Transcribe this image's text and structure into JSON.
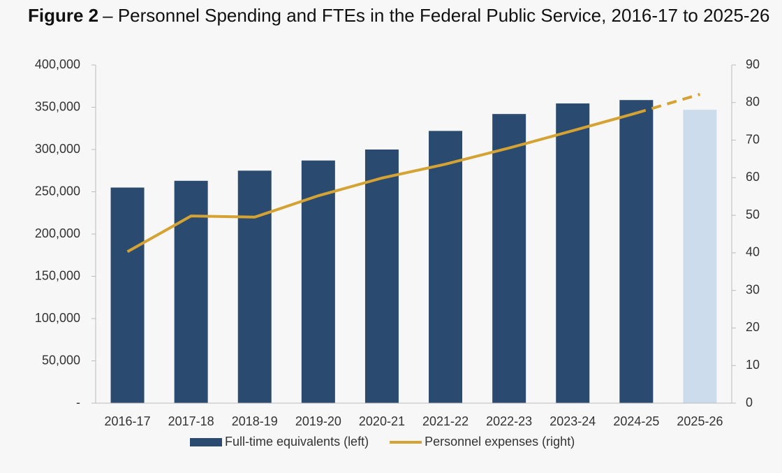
{
  "chart_data": {
    "type": "bar-line",
    "figure_label": "Figure 2",
    "title": "– Personnel Spending and FTEs in the Federal Public Service, 2016-17 to 2025-26",
    "categories": [
      "2016-17",
      "2017-18",
      "2018-19",
      "2019-20",
      "2020-21",
      "2021-22",
      "2022-23",
      "2023-24",
      "2024-25",
      "2025-26"
    ],
    "series": [
      {
        "name": "Full-time equivalents (left)",
        "type": "bar",
        "axis": "y",
        "color": "#2b4a6f",
        "point_colors": [
          "#2b4a6f",
          "#2b4a6f",
          "#2b4a6f",
          "#2b4a6f",
          "#2b4a6f",
          "#2b4a6f",
          "#2b4a6f",
          "#2b4a6f",
          "#2b4a6f",
          "#cddced"
        ],
        "values": [
          255000,
          263000,
          275000,
          287000,
          300000,
          322000,
          342000,
          354500,
          358500,
          347000
        ]
      },
      {
        "name": "Personnel expenses (right)",
        "type": "line",
        "axis": "y2",
        "color": "#d4a333",
        "dash_start_index": 8,
        "values": [
          40.3,
          49.8,
          49.5,
          55.2,
          59.9,
          63.6,
          67.9,
          72.5,
          77.2,
          82.2
        ]
      }
    ],
    "ylim": [
      0,
      400000
    ],
    "yticks": [
      {
        "value": 0,
        "label": "-"
      },
      {
        "value": 50000,
        "label": "50,000"
      },
      {
        "value": 100000,
        "label": "100,000"
      },
      {
        "value": 150000,
        "label": "150,000"
      },
      {
        "value": 200000,
        "label": "200,000"
      },
      {
        "value": 250000,
        "label": "250,000"
      },
      {
        "value": 300000,
        "label": "300,000"
      },
      {
        "value": 350000,
        "label": "350,000"
      },
      {
        "value": 400000,
        "label": "400,000"
      }
    ],
    "y2lim": [
      0,
      90
    ],
    "y2ticks": [
      0,
      10,
      20,
      30,
      40,
      50,
      60,
      70,
      80,
      90
    ],
    "grid": false
  }
}
